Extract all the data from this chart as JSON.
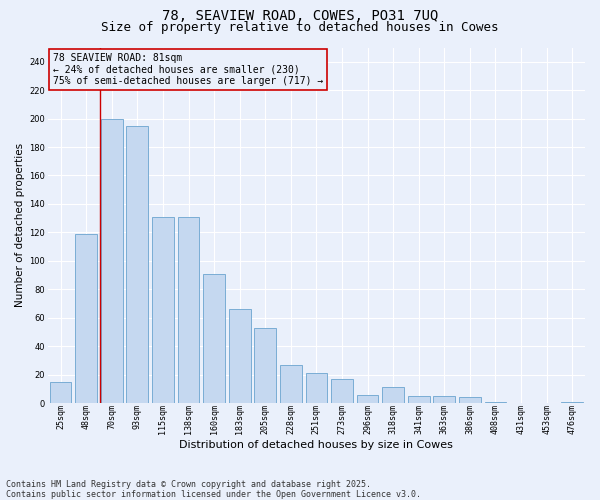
{
  "title1": "78, SEAVIEW ROAD, COWES, PO31 7UQ",
  "title2": "Size of property relative to detached houses in Cowes",
  "xlabel": "Distribution of detached houses by size in Cowes",
  "ylabel": "Number of detached properties",
  "categories": [
    "25sqm",
    "48sqm",
    "70sqm",
    "93sqm",
    "115sqm",
    "138sqm",
    "160sqm",
    "183sqm",
    "205sqm",
    "228sqm",
    "251sqm",
    "273sqm",
    "296sqm",
    "318sqm",
    "341sqm",
    "363sqm",
    "386sqm",
    "408sqm",
    "431sqm",
    "453sqm",
    "476sqm"
  ],
  "values": [
    15,
    119,
    200,
    195,
    131,
    131,
    91,
    66,
    53,
    27,
    21,
    17,
    6,
    11,
    5,
    5,
    4,
    1,
    0,
    0,
    1
  ],
  "bar_color": "#c5d8f0",
  "bar_edge_color": "#7aadd4",
  "background_color": "#eaf0fb",
  "grid_color": "#ffffff",
  "annotation_line1": "78 SEAVIEW ROAD: 81sqm",
  "annotation_line2": "← 24% of detached houses are smaller (230)",
  "annotation_line3": "75% of semi-detached houses are larger (717) →",
  "vline_color": "#cc0000",
  "vline_x": 1.55,
  "ylim": [
    0,
    250
  ],
  "yticks": [
    0,
    20,
    40,
    60,
    80,
    100,
    120,
    140,
    160,
    180,
    200,
    220,
    240
  ],
  "footnote": "Contains HM Land Registry data © Crown copyright and database right 2025.\nContains public sector information licensed under the Open Government Licence v3.0.",
  "title_fontsize": 10,
  "subtitle_fontsize": 9,
  "tick_fontsize": 6,
  "ylabel_fontsize": 7.5,
  "xlabel_fontsize": 8,
  "annotation_fontsize": 7,
  "footnote_fontsize": 6
}
